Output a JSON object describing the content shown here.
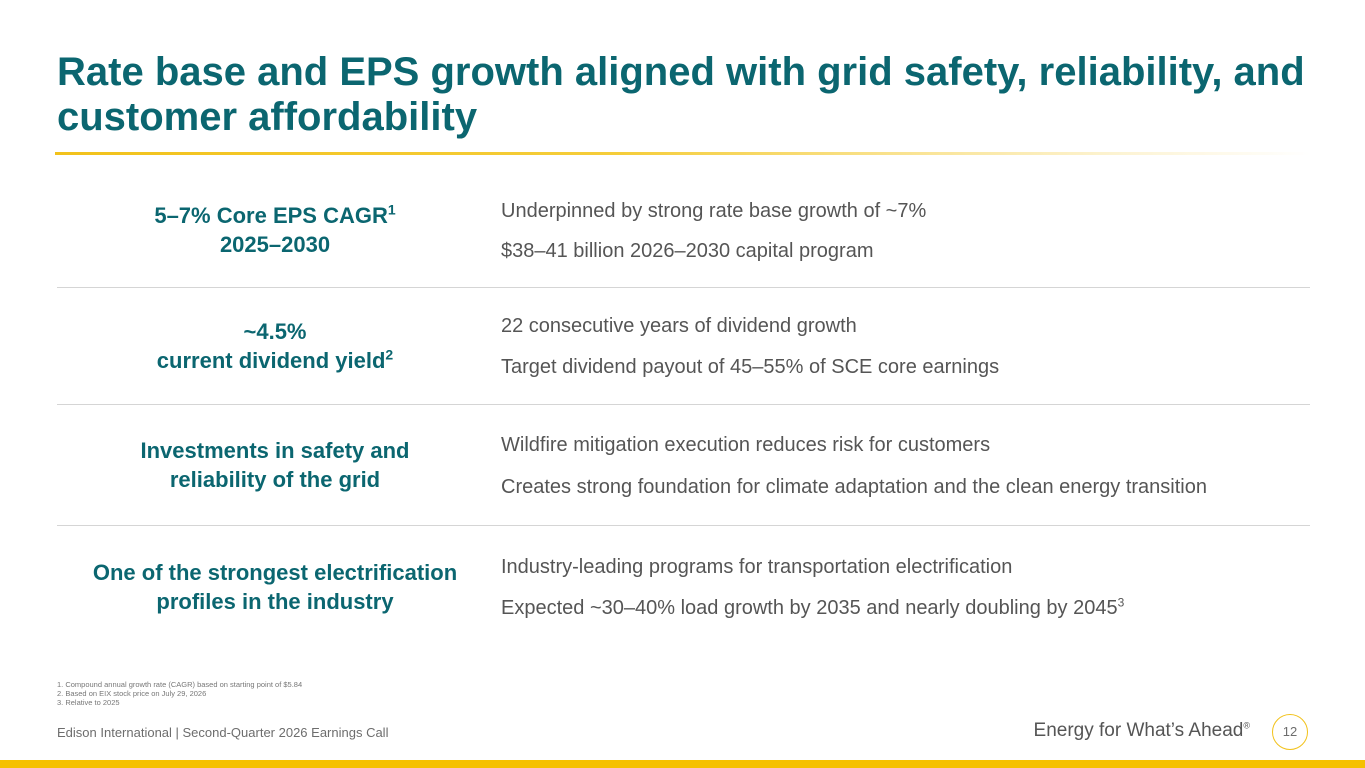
{
  "title": "Rate base and EPS growth aligned with grid safety, reliability, and customer affordability",
  "rows": [
    {
      "left_line1": "5–7% Core EPS CAGR",
      "left_line1_sup": "1",
      "left_line2": "2025–2030",
      "left_line2_sup": "",
      "right_line1": "Underpinned by strong rate base growth of ~7%",
      "right_line1_sup": "",
      "right_line2": "$38–41 billion 2026–2030 capital program",
      "right_line2_sup": ""
    },
    {
      "left_line1": "~4.5%",
      "left_line1_sup": "",
      "left_line2": "current dividend yield",
      "left_line2_sup": "2",
      "right_line1": "22 consecutive years of dividend growth",
      "right_line1_sup": "",
      "right_line2": "Target dividend payout of 45–55% of SCE core earnings",
      "right_line2_sup": ""
    },
    {
      "left_line1": "Investments in safety and",
      "left_line1_sup": "",
      "left_line2": "reliability of the grid",
      "left_line2_sup": "",
      "right_line1": "Wildfire mitigation execution reduces risk for customers",
      "right_line1_sup": "",
      "right_line2": "Creates strong foundation for climate adaptation and the clean energy transition",
      "right_line2_sup": ""
    },
    {
      "left_line1": "One of the strongest electrification",
      "left_line1_sup": "",
      "left_line2": "profiles in the industry",
      "left_line2_sup": "",
      "right_line1": "Industry-leading programs for transportation electrification",
      "right_line1_sup": "",
      "right_line2": "Expected ~30–40% load growth by 2035 and nearly doubling by 2045",
      "right_line2_sup": "3"
    }
  ],
  "footnotes": [
    "1.   Compound annual growth rate (CAGR) based on starting point of $5.84",
    "2.   Based on EIX stock price on July 29, 2026",
    "3.   Relative to 2025"
  ],
  "footer": {
    "left": "Edison International |  Second-Quarter 2026 Earnings Call",
    "tagline": "Energy for What’s Ahead",
    "tagline_mark": "®",
    "page_number": "12"
  },
  "colors": {
    "accent_teal": "#0b6670",
    "accent_gold": "#f2c21b",
    "body_text": "#555555"
  }
}
